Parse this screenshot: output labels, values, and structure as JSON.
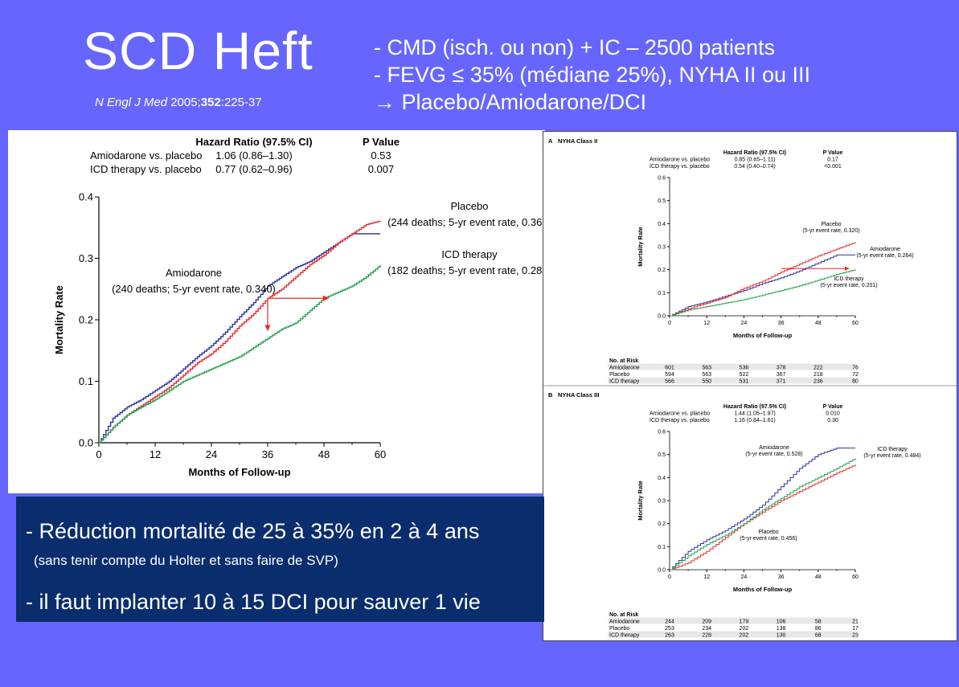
{
  "slide": {
    "title": "SCD Heft",
    "reference_journal": "N Engl J Med",
    "reference_year": " 2005;",
    "reference_volume": "352",
    "reference_pages": ":225-37",
    "bullets": [
      "- CMD (isch. ou non) + IC – 2500 patients",
      "- FEVG ≤ 35% (médiane 25%), NYHA II ou III",
      "→ Placebo/Amiodarone/DCI"
    ],
    "conclusions": {
      "line1": "- Réduction mortalité de 25 à 35% en 2 à 4 ans",
      "line2": "(sans tenir compte du Holter et sans faire de SVP)",
      "line3": "- il faut implanter 10 à 15 DCI pour sauver 1 vie"
    }
  },
  "colors": {
    "background": "#6666ff",
    "placebo": "#e8282a",
    "amiodarone": "#2b2f9c",
    "icd": "#22a04a",
    "conclusion_box": "#0a2d6e"
  },
  "chart_data": [
    {
      "type": "line",
      "panel": "main",
      "table": {
        "headers": [
          "Hazard Ratio (97.5% CI)",
          "P Value"
        ],
        "rows": [
          {
            "label": "Amiodarone vs. placebo",
            "hr": "1.06 (0.86–1.30)",
            "p": "0.53"
          },
          {
            "label": "ICD therapy vs. placebo",
            "hr": "0.77 (0.62–0.96)",
            "p": "0.007"
          }
        ]
      },
      "xlabel": "Months of Follow-up",
      "ylabel": "Mortality Rate",
      "x_ticks": [
        "0",
        "12",
        "24",
        "36",
        "48",
        "60"
      ],
      "y_ticks": [
        "0.0",
        "0.1",
        "0.2",
        "0.3",
        "0.4"
      ],
      "xlim": [
        0,
        60
      ],
      "ylim": [
        0,
        0.4
      ],
      "annotations": [
        {
          "name": "Placebo",
          "detail": "(244 deaths; 5-yr event rate, 0.361)"
        },
        {
          "name": "ICD therapy",
          "detail": "(182 deaths; 5-yr event rate, 0.289)"
        },
        {
          "name": "Amiodarone",
          "detail": "(240 deaths; 5-yr event rate, 0.340)"
        }
      ],
      "series": [
        {
          "name": "Amiodarone",
          "x": [
            0,
            3,
            6,
            9,
            12,
            15,
            18,
            21,
            24,
            27,
            30,
            33,
            36,
            39,
            42,
            45,
            48,
            51,
            54,
            57,
            60
          ],
          "y": [
            0,
            0.04,
            0.058,
            0.07,
            0.085,
            0.1,
            0.12,
            0.14,
            0.158,
            0.18,
            0.205,
            0.228,
            0.255,
            0.27,
            0.285,
            0.295,
            0.31,
            0.325,
            0.34,
            0.34,
            0.34
          ]
        },
        {
          "name": "Placebo",
          "x": [
            0,
            3,
            6,
            9,
            12,
            15,
            18,
            21,
            24,
            27,
            30,
            33,
            36,
            39,
            42,
            45,
            48,
            51,
            54,
            57,
            60
          ],
          "y": [
            0,
            0.025,
            0.045,
            0.06,
            0.075,
            0.09,
            0.11,
            0.13,
            0.145,
            0.165,
            0.19,
            0.21,
            0.235,
            0.25,
            0.27,
            0.29,
            0.305,
            0.325,
            0.34,
            0.355,
            0.361
          ]
        },
        {
          "name": "ICD therapy",
          "x": [
            0,
            3,
            6,
            9,
            12,
            15,
            18,
            21,
            24,
            27,
            30,
            33,
            36,
            39,
            42,
            45,
            48,
            51,
            54,
            57,
            60
          ],
          "y": [
            0,
            0.025,
            0.045,
            0.058,
            0.07,
            0.085,
            0.1,
            0.11,
            0.12,
            0.13,
            0.14,
            0.155,
            0.17,
            0.185,
            0.195,
            0.215,
            0.235,
            0.245,
            0.255,
            0.27,
            0.289
          ]
        }
      ]
    },
    {
      "type": "line",
      "panel": "A",
      "panel_title": "NYHA Class II",
      "panel_letter": "A",
      "table": {
        "headers": [
          "Hazard Ratio (97.5% CI)",
          "P Value"
        ],
        "rows": [
          {
            "label": "Amiodarone vs. placebo",
            "hr": "0.85 (0.65–1.11)",
            "p": "0.17"
          },
          {
            "label": "ICD therapy vs. placebo",
            "hr": "0.54 (0.40–0.74)",
            "p": "<0.001"
          }
        ]
      },
      "xlabel": "Months of Follow-up",
      "ylabel": "Mortality Rate",
      "x_ticks": [
        "0",
        "12",
        "24",
        "36",
        "48",
        "60"
      ],
      "y_ticks": [
        "0.0",
        "0.1",
        "0.2",
        "0.3",
        "0.4",
        "0.5",
        "0.6"
      ],
      "xlim": [
        0,
        60
      ],
      "ylim": [
        0,
        0.6
      ],
      "annotations": [
        {
          "name": "Placebo",
          "detail": "(5-yr event rate, 0.320)"
        },
        {
          "name": "Amiodarone",
          "detail": "(5-yr event rate, 0.264)"
        },
        {
          "name": "ICD therapy",
          "detail": "(5-yr event rate, 0.201)"
        }
      ],
      "series": [
        {
          "name": "Amiodarone",
          "x": [
            0,
            6,
            12,
            18,
            24,
            30,
            36,
            42,
            48,
            54,
            60
          ],
          "y": [
            0,
            0.04,
            0.06,
            0.085,
            0.11,
            0.14,
            0.165,
            0.195,
            0.23,
            0.264,
            0.264
          ]
        },
        {
          "name": "Placebo",
          "x": [
            0,
            6,
            12,
            18,
            24,
            30,
            36,
            42,
            48,
            54,
            60
          ],
          "y": [
            0,
            0.03,
            0.055,
            0.08,
            0.12,
            0.15,
            0.19,
            0.225,
            0.26,
            0.29,
            0.32
          ]
        },
        {
          "name": "ICD therapy",
          "x": [
            0,
            6,
            12,
            18,
            24,
            30,
            36,
            42,
            48,
            54,
            60
          ],
          "y": [
            0,
            0.025,
            0.04,
            0.055,
            0.07,
            0.09,
            0.11,
            0.13,
            0.155,
            0.18,
            0.201
          ]
        }
      ],
      "risk_table": {
        "title": "No. at Risk",
        "rows": [
          {
            "label": "Amiodarone",
            "values": [
              "601",
              "563",
              "536",
              "378",
              "222",
              "76"
            ]
          },
          {
            "label": "Placebo",
            "values": [
              "594",
              "563",
              "522",
              "367",
              "218",
              "72"
            ]
          },
          {
            "label": "ICD therapy",
            "values": [
              "566",
              "550",
              "531",
              "371",
              "236",
              "80"
            ]
          }
        ]
      }
    },
    {
      "type": "line",
      "panel": "B",
      "panel_title": "NYHA Class III",
      "panel_letter": "B",
      "table": {
        "headers": [
          "Hazard Ratio (97.5% CI)",
          "P Value"
        ],
        "rows": [
          {
            "label": "Amiodarone vs. placebo",
            "hr": "1.44 (1.05–1.97)",
            "p": "0.010"
          },
          {
            "label": "ICD therapy vs. placebo",
            "hr": "1.16 (0.84–1.61)",
            "p": "0.30"
          }
        ]
      },
      "xlabel": "Months of Follow-up",
      "ylabel": "Mortality Rate",
      "x_ticks": [
        "0",
        "12",
        "24",
        "36",
        "48",
        "60"
      ],
      "y_ticks": [
        "0.0",
        "0.1",
        "0.2",
        "0.3",
        "0.4",
        "0.5",
        "0.6"
      ],
      "xlim": [
        0,
        60
      ],
      "ylim": [
        0,
        0.6
      ],
      "annotations": [
        {
          "name": "Amiodarone",
          "detail": "(5-yr event rate, 0.528)"
        },
        {
          "name": "ICD therapy",
          "detail": "(5-yr event rate, 0.484)"
        },
        {
          "name": "Placebo",
          "detail": "(5-yr event rate, 0.456)"
        }
      ],
      "series": [
        {
          "name": "Amiodarone",
          "x": [
            0,
            6,
            12,
            18,
            24,
            30,
            36,
            42,
            48,
            54,
            60
          ],
          "y": [
            0,
            0.08,
            0.13,
            0.17,
            0.22,
            0.28,
            0.36,
            0.44,
            0.5,
            0.528,
            0.528
          ]
        },
        {
          "name": "Placebo",
          "x": [
            0,
            6,
            12,
            18,
            24,
            30,
            36,
            42,
            48,
            54,
            60
          ],
          "y": [
            0,
            0.03,
            0.08,
            0.14,
            0.2,
            0.25,
            0.3,
            0.34,
            0.38,
            0.42,
            0.456
          ]
        },
        {
          "name": "ICD therapy",
          "x": [
            0,
            6,
            12,
            18,
            24,
            30,
            36,
            42,
            48,
            54,
            60
          ],
          "y": [
            0,
            0.06,
            0.11,
            0.15,
            0.2,
            0.26,
            0.31,
            0.36,
            0.4,
            0.44,
            0.484
          ]
        }
      ],
      "risk_table": {
        "title": "No. at Risk",
        "rows": [
          {
            "label": "Amiodarone",
            "values": [
              "244",
              "209",
              "179",
              "106",
              "58",
              "21"
            ]
          },
          {
            "label": "Placebo",
            "values": [
              "253",
              "234",
              "202",
              "138",
              "86",
              "17"
            ]
          },
          {
            "label": "ICD therapy",
            "values": [
              "263",
              "228",
              "202",
              "130",
              "68",
              "23"
            ]
          }
        ]
      }
    }
  ]
}
